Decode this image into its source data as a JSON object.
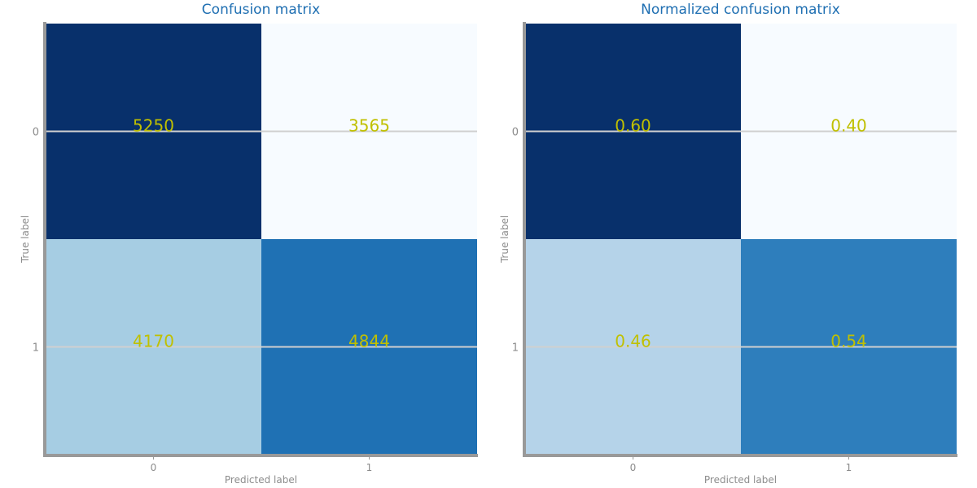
{
  "chart_data": [
    {
      "type": "heatmap",
      "title": "Confusion matrix",
      "xlabel": "Predicted label",
      "ylabel": "True label",
      "x_ticks": [
        "0",
        "1"
      ],
      "y_ticks": [
        "0",
        "1"
      ],
      "values": [
        [
          5250,
          3565
        ],
        [
          4170,
          4844
        ]
      ],
      "value_labels": [
        [
          "5250",
          "3565"
        ],
        [
          "4170",
          "4844"
        ]
      ],
      "colors": [
        [
          "#08306b",
          "#f7fbff"
        ],
        [
          "#a6cde3",
          "#1f71b4"
        ]
      ],
      "grid": true,
      "colormap": "Blues"
    },
    {
      "type": "heatmap",
      "title": "Normalized confusion matrix",
      "xlabel": "Predicted label",
      "ylabel": "True label",
      "x_ticks": [
        "0",
        "1"
      ],
      "y_ticks": [
        "0",
        "1"
      ],
      "values": [
        [
          0.6,
          0.4
        ],
        [
          0.46,
          0.54
        ]
      ],
      "value_labels": [
        [
          "0.60",
          "0.40"
        ],
        [
          "0.46",
          "0.54"
        ]
      ],
      "colors": [
        [
          "#08306b",
          "#f7fbff"
        ],
        [
          "#b5d3e9",
          "#2e7ebc"
        ]
      ],
      "grid": true,
      "colormap": "Blues"
    }
  ],
  "styles": {
    "value_color": "#c0c000",
    "title_color": "#1f6fb2",
    "axis_color": "#999999",
    "grid_color": "#d0d0d0"
  }
}
